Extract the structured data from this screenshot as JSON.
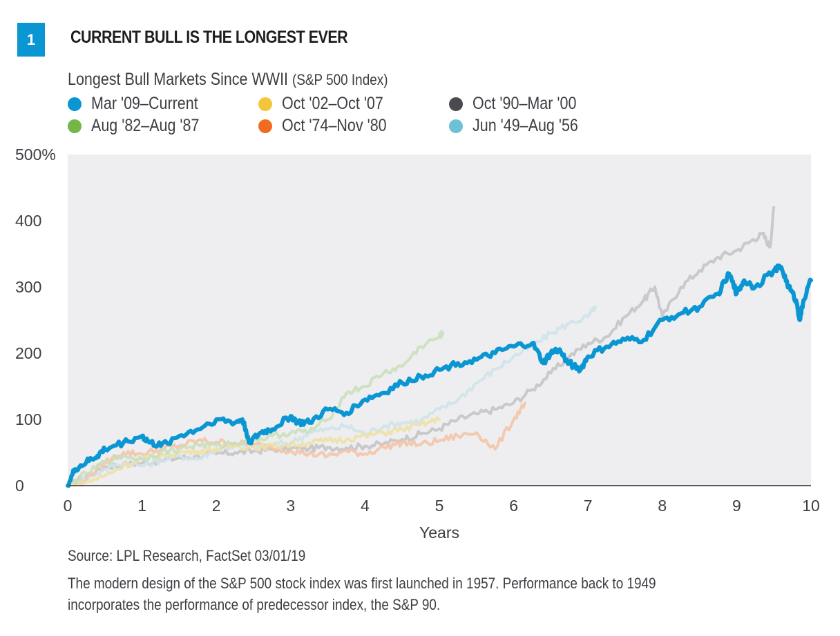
{
  "header": {
    "badge_number": "1",
    "title": "CURRENT BULL IS THE LONGEST EVER",
    "subtitle": "Longest Bull Markets Since WWII",
    "subtitle_suffix": "(S&P 500 Index)"
  },
  "footer": {
    "source": "Source: LPL Research, FactSet   03/01/19",
    "note_line1": "The modern design of the S&P 500 stock index was first launched in 1957. Performance back to 1949",
    "note_line2": "incorporates the performance of predecessor index, the S&P 90."
  },
  "chart_data": {
    "type": "line",
    "title": "Longest Bull Markets Since WWII (S&P 500 Index)",
    "xlabel": "Years",
    "ylabel": "",
    "xlim": [
      0,
      10
    ],
    "ylim": [
      0,
      500
    ],
    "x_ticks": [
      "0",
      "1",
      "2",
      "3",
      "4",
      "5",
      "6",
      "7",
      "8",
      "9",
      "10"
    ],
    "y_ticks": [
      "0",
      "100",
      "200",
      "300",
      "400",
      "500%"
    ],
    "y_tick_values": [
      0,
      100,
      200,
      300,
      400,
      500
    ],
    "grid": false,
    "legend_position": "top-left",
    "background": "#eeeef0",
    "series": [
      {
        "name": "Oct '90–Mar '00",
        "color": "#4a4a50",
        "line_color": "#c4c4c8",
        "x": [
          0,
          0.25,
          0.5,
          0.75,
          1.0,
          1.25,
          1.5,
          1.75,
          2.0,
          2.25,
          2.5,
          2.75,
          3.0,
          3.25,
          3.5,
          3.75,
          4.0,
          4.25,
          4.5,
          4.75,
          5.0,
          5.25,
          5.5,
          5.75,
          6.0,
          6.25,
          6.5,
          6.75,
          7.0,
          7.25,
          7.5,
          7.75,
          7.9,
          8.0,
          8.25,
          8.5,
          8.75,
          9.0,
          9.2,
          9.35,
          9.45,
          9.5
        ],
        "values": [
          0,
          15,
          28,
          32,
          34,
          38,
          42,
          45,
          48,
          50,
          52,
          55,
          56,
          56,
          58,
          57,
          60,
          63,
          70,
          78,
          86,
          100,
          108,
          115,
          125,
          145,
          170,
          195,
          215,
          225,
          255,
          280,
          300,
          255,
          300,
          325,
          345,
          355,
          370,
          380,
          360,
          420
        ]
      },
      {
        "name": "Jun '49–Aug '56",
        "color": "#6ec0d6",
        "line_color": "#cfe3ea",
        "x": [
          0,
          0.25,
          0.5,
          0.75,
          1.0,
          1.25,
          1.5,
          1.75,
          2.0,
          2.25,
          2.5,
          2.75,
          3.0,
          3.25,
          3.5,
          3.75,
          4.0,
          4.25,
          4.5,
          4.75,
          5.0,
          5.25,
          5.5,
          5.75,
          6.0,
          6.25,
          6.5,
          6.75,
          7.0,
          7.1
        ],
        "values": [
          0,
          12,
          25,
          35,
          30,
          38,
          45,
          40,
          55,
          60,
          58,
          62,
          65,
          80,
          85,
          90,
          78,
          90,
          95,
          98,
          115,
          130,
          155,
          175,
          195,
          210,
          230,
          245,
          255,
          270
        ]
      },
      {
        "name": "Oct '74–Nov '80",
        "color": "#f26b21",
        "line_color": "#f3c4a8",
        "x": [
          0,
          0.25,
          0.5,
          0.75,
          1.0,
          1.25,
          1.5,
          1.75,
          2.0,
          2.25,
          2.5,
          2.75,
          3.0,
          3.25,
          3.5,
          3.75,
          4.0,
          4.25,
          4.5,
          4.75,
          5.0,
          5.25,
          5.5,
          5.75,
          6.0,
          6.15
        ],
        "values": [
          0,
          10,
          35,
          50,
          48,
          55,
          60,
          68,
          66,
          64,
          62,
          57,
          53,
          48,
          45,
          52,
          48,
          58,
          65,
          62,
          68,
          75,
          80,
          55,
          100,
          125
        ]
      },
      {
        "name": "Oct '02–Oct '07",
        "color": "#f3c538",
        "line_color": "#ede0a8",
        "x": [
          0,
          0.25,
          0.5,
          0.75,
          1.0,
          1.25,
          1.5,
          1.75,
          2.0,
          2.25,
          2.5,
          2.75,
          3.0,
          3.25,
          3.5,
          3.75,
          4.0,
          4.25,
          4.5,
          4.75,
          5.0
        ],
        "values": [
          0,
          5,
          15,
          30,
          40,
          45,
          50,
          52,
          55,
          60,
          58,
          60,
          62,
          65,
          68,
          70,
          75,
          80,
          85,
          92,
          100
        ]
      },
      {
        "name": "Aug '82–Aug '87",
        "color": "#74b648",
        "line_color": "#cadfba",
        "x": [
          0,
          0.25,
          0.5,
          0.75,
          1.0,
          1.25,
          1.5,
          1.75,
          2.0,
          2.25,
          2.5,
          2.75,
          3.0,
          3.25,
          3.5,
          3.75,
          4.0,
          4.25,
          4.5,
          4.75,
          5.0,
          5.05
        ],
        "values": [
          0,
          18,
          35,
          45,
          40,
          50,
          55,
          62,
          60,
          65,
          68,
          75,
          80,
          82,
          100,
          140,
          150,
          170,
          180,
          210,
          225,
          230
        ]
      },
      {
        "name": "Mar '09–Current",
        "color": "#0a96d2",
        "line_color": "#0a96d2",
        "x": [
          0,
          0.1,
          0.25,
          0.4,
          0.5,
          0.75,
          1.0,
          1.1,
          1.25,
          1.5,
          1.75,
          2.0,
          2.25,
          2.35,
          2.45,
          2.6,
          2.75,
          3.0,
          3.1,
          3.25,
          3.5,
          3.75,
          4.0,
          4.25,
          4.5,
          4.75,
          5.0,
          5.25,
          5.5,
          5.75,
          6.0,
          6.25,
          6.4,
          6.5,
          6.6,
          6.75,
          6.9,
          7.0,
          7.25,
          7.5,
          7.75,
          8.0,
          8.25,
          8.5,
          8.75,
          8.9,
          9.0,
          9.1,
          9.25,
          9.5,
          9.6,
          9.7,
          9.8,
          9.85,
          9.9,
          10.0
        ],
        "values": [
          0,
          25,
          35,
          45,
          55,
          65,
          75,
          65,
          60,
          75,
          85,
          100,
          95,
          100,
          65,
          80,
          85,
          105,
          95,
          95,
          115,
          110,
          130,
          140,
          155,
          165,
          175,
          185,
          190,
          200,
          210,
          215,
          185,
          200,
          205,
          185,
          175,
          195,
          210,
          220,
          220,
          250,
          260,
          270,
          290,
          320,
          290,
          310,
          300,
          325,
          330,
          300,
          280,
          250,
          280,
          310
        ]
      }
    ]
  }
}
